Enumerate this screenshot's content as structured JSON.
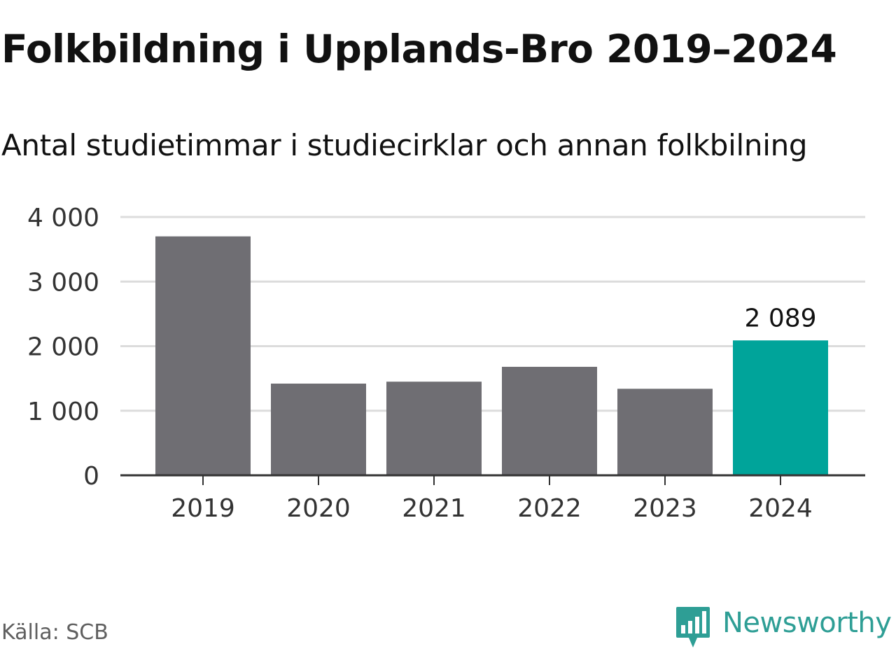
{
  "header": {
    "title": "Folkbildning i Upplands-Bro 2019–2024",
    "subtitle": "Antal studietimmar i studiecirklar och annan folkbilning"
  },
  "footer": {
    "source": "Källa: SCB",
    "brand_name": "Newsworthy",
    "brand_icon": "newsworthy-logo-icon"
  },
  "colors": {
    "bar_default": "#6f6e73",
    "bar_highlight": "#00a49a",
    "gridline": "#dcdcdc",
    "axis": "#333333",
    "brand": "#2e9e95"
  },
  "chart_data": {
    "type": "bar",
    "title": "Folkbildning i Upplands-Bro 2019–2024",
    "subtitle": "Antal studietimmar i studiecirklar och annan folkbilning",
    "categories": [
      "2019",
      "2020",
      "2021",
      "2022",
      "2023",
      "2024"
    ],
    "values": [
      3700,
      1420,
      1450,
      1680,
      1340,
      2089
    ],
    "highlight_index": 5,
    "data_labels": [
      {
        "index": 5,
        "text": "2 089"
      }
    ],
    "xlabel": "",
    "ylabel": "",
    "ylim": [
      0,
      4000
    ],
    "yticks": [
      0,
      1000,
      2000,
      3000,
      4000
    ],
    "ytick_labels": [
      "0",
      "1 000",
      "2 000",
      "3 000",
      "4 000"
    ],
    "grid": true,
    "legend": "none"
  }
}
